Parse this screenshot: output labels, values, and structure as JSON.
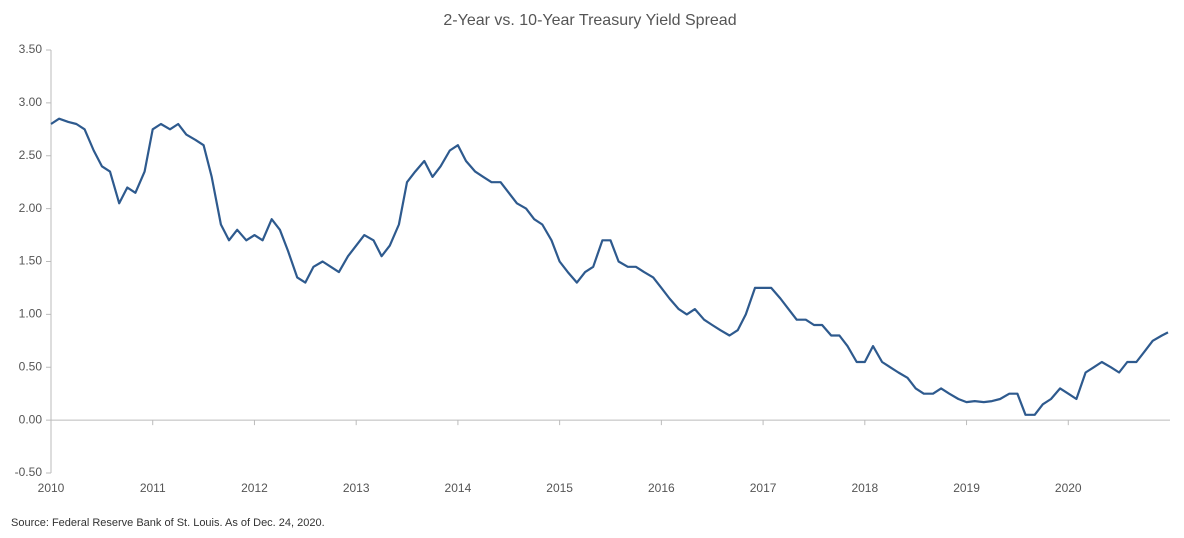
{
  "chart_data": {
    "type": "line",
    "title": "2-Year vs. 10-Year Treasury Yield Spread",
    "source": "Source: Federal Reserve Bank of St. Louis. As of Dec. 24, 2020.",
    "x": [
      2010.0,
      2010.08,
      2010.17,
      2010.25,
      2010.33,
      2010.42,
      2010.5,
      2010.58,
      2010.67,
      2010.75,
      2010.83,
      2010.92,
      2011.0,
      2011.08,
      2011.17,
      2011.25,
      2011.33,
      2011.42,
      2011.5,
      2011.58,
      2011.67,
      2011.75,
      2011.83,
      2011.92,
      2012.0,
      2012.08,
      2012.17,
      2012.25,
      2012.33,
      2012.42,
      2012.5,
      2012.58,
      2012.67,
      2012.75,
      2012.83,
      2012.92,
      2013.0,
      2013.08,
      2013.17,
      2013.25,
      2013.33,
      2013.42,
      2013.5,
      2013.58,
      2013.67,
      2013.75,
      2013.83,
      2013.92,
      2014.0,
      2014.08,
      2014.17,
      2014.25,
      2014.33,
      2014.42,
      2014.5,
      2014.58,
      2014.67,
      2014.75,
      2014.83,
      2014.92,
      2015.0,
      2015.08,
      2015.17,
      2015.25,
      2015.33,
      2015.42,
      2015.5,
      2015.58,
      2015.67,
      2015.75,
      2015.83,
      2015.92,
      2016.0,
      2016.08,
      2016.17,
      2016.25,
      2016.33,
      2016.42,
      2016.5,
      2016.58,
      2016.67,
      2016.75,
      2016.83,
      2016.92,
      2017.0,
      2017.08,
      2017.17,
      2017.25,
      2017.33,
      2017.42,
      2017.5,
      2017.58,
      2017.67,
      2017.75,
      2017.83,
      2017.92,
      2018.0,
      2018.08,
      2018.17,
      2018.25,
      2018.33,
      2018.42,
      2018.5,
      2018.58,
      2018.67,
      2018.75,
      2018.83,
      2018.92,
      2019.0,
      2019.08,
      2019.17,
      2019.25,
      2019.33,
      2019.42,
      2019.5,
      2019.58,
      2019.67,
      2019.75,
      2019.83,
      2019.92,
      2020.0,
      2020.08,
      2020.17,
      2020.25,
      2020.33,
      2020.42,
      2020.5,
      2020.58,
      2020.67,
      2020.75,
      2020.83,
      2020.92,
      2020.98
    ],
    "series": [
      {
        "name": "2-Year vs. 10-Year Spread",
        "color": "#2e5a8e",
        "values": [
          2.8,
          2.85,
          2.82,
          2.8,
          2.75,
          2.55,
          2.4,
          2.35,
          2.05,
          2.2,
          2.15,
          2.35,
          2.75,
          2.8,
          2.75,
          2.8,
          2.7,
          2.65,
          2.6,
          2.3,
          1.85,
          1.7,
          1.8,
          1.7,
          1.75,
          1.7,
          1.9,
          1.8,
          1.6,
          1.35,
          1.3,
          1.45,
          1.5,
          1.45,
          1.4,
          1.55,
          1.65,
          1.75,
          1.7,
          1.55,
          1.65,
          1.85,
          2.25,
          2.35,
          2.45,
          2.3,
          2.4,
          2.55,
          2.6,
          2.45,
          2.35,
          2.3,
          2.25,
          2.25,
          2.15,
          2.05,
          2.0,
          1.9,
          1.85,
          1.7,
          1.5,
          1.4,
          1.3,
          1.4,
          1.45,
          1.7,
          1.7,
          1.5,
          1.45,
          1.45,
          1.4,
          1.35,
          1.25,
          1.15,
          1.05,
          1.0,
          1.05,
          0.95,
          0.9,
          0.85,
          0.8,
          0.85,
          1.0,
          1.25,
          1.25,
          1.25,
          1.15,
          1.05,
          0.95,
          0.95,
          0.9,
          0.9,
          0.8,
          0.8,
          0.7,
          0.55,
          0.55,
          0.7,
          0.55,
          0.5,
          0.45,
          0.4,
          0.3,
          0.25,
          0.25,
          0.3,
          0.25,
          0.2,
          0.17,
          0.18,
          0.17,
          0.18,
          0.2,
          0.25,
          0.25,
          0.05,
          0.05,
          0.15,
          0.2,
          0.3,
          0.25,
          0.2,
          0.45,
          0.5,
          0.55,
          0.5,
          0.45,
          0.55,
          0.55,
          0.65,
          0.75,
          0.8,
          0.83
        ]
      }
    ],
    "xlim": [
      2010,
      2021
    ],
    "xticks": [
      2010,
      2011,
      2012,
      2013,
      2014,
      2015,
      2016,
      2017,
      2018,
      2019,
      2020
    ],
    "ylim": [
      -0.5,
      3.5
    ],
    "yticks": [
      {
        "value": -0.5,
        "label": "-0.50"
      },
      {
        "value": 0,
        "label": "0.00"
      },
      {
        "value": 0.5,
        "label": "0.50"
      },
      {
        "value": 1,
        "label": "1.00"
      },
      {
        "value": 1.5,
        "label": "1.50"
      },
      {
        "value": 2,
        "label": "2.00"
      },
      {
        "value": 2.5,
        "label": "2.50"
      },
      {
        "value": 3,
        "label": "3.00"
      },
      {
        "value": 3.5,
        "label": "3.50"
      }
    ],
    "grid": false
  }
}
